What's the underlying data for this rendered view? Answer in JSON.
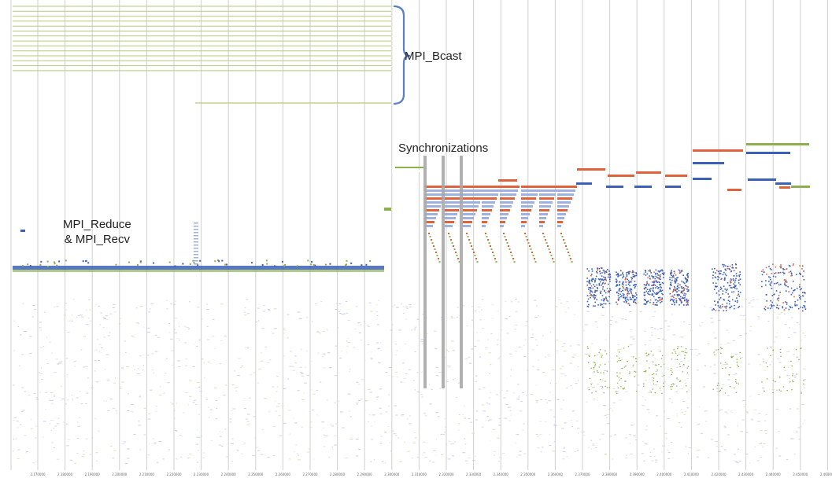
{
  "annotations": {
    "bcast": "MPI_Bcast",
    "sync": "Synchronizations",
    "reduce_line1": "MPI_Reduce",
    "reduce_line2": "& MPI_Recv"
  },
  "x_axis": {
    "tick_labels": [
      "2.170000",
      "2.180000",
      "2.190000",
      "2.200000",
      "2.210000",
      "2.220000",
      "2.230000",
      "2.240000",
      "2.250000",
      "2.260000",
      "2.270000",
      "2.280000",
      "2.290000",
      "2.300000",
      "2.310000",
      "2.320000",
      "2.330000",
      "2.340000",
      "2.350000",
      "2.360000",
      "2.370000",
      "2.380000",
      "2.390000",
      "2.400000",
      "2.410000",
      "2.420000",
      "2.430000",
      "2.440000",
      "2.450000",
      "2.460000"
    ]
  },
  "colors": {
    "gridline": "#cfcfcf",
    "bcast_bar": "#b6c97a",
    "green_event": "#8db04e",
    "blue_event": "#3c5fb8",
    "orange_event": "#e0623a",
    "light_blue_event": "#9fb1de",
    "sync_bar": "#a8a8a8",
    "brace": "#5b7fc4",
    "background": "#ffffff"
  }
}
